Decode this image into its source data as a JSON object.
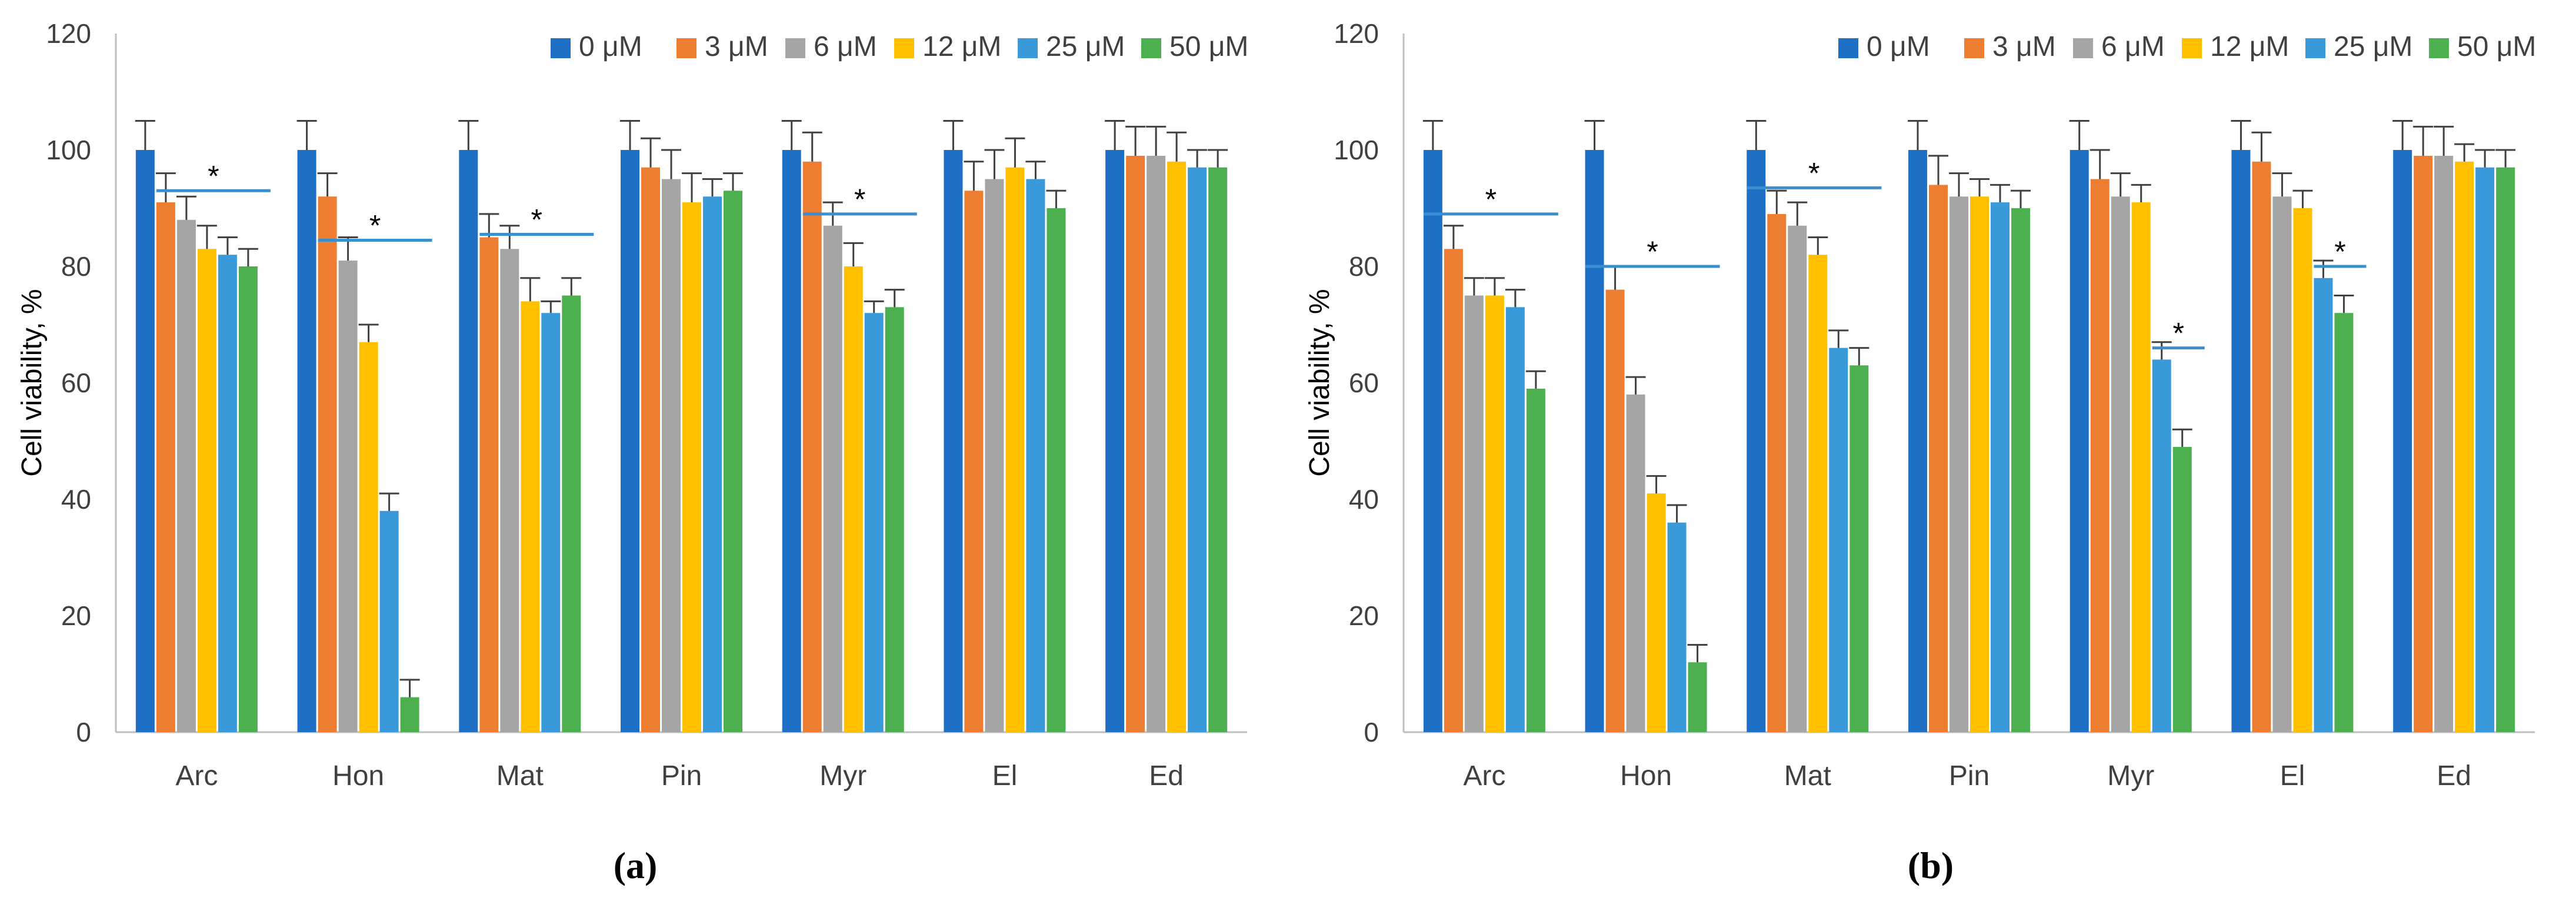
{
  "colors": {
    "series": [
      "#1f6fc5",
      "#ed7d31",
      "#a5a5a5",
      "#ffc000",
      "#3a9ad9",
      "#4caf50"
    ],
    "sig_line": "#3a8fd0",
    "axis": "#bfbfbf",
    "error_bar": "#404040"
  },
  "chart_data": [
    {
      "type": "bar",
      "panel_label": "(a)",
      "ylabel": "Cell viability, %",
      "xlabel": "",
      "ylim": [
        0,
        120
      ],
      "yticks": [
        0,
        20,
        40,
        60,
        80,
        100,
        120
      ],
      "grid": false,
      "legend_position": "top-right",
      "categories": [
        "Arc",
        "Hon",
        "Mat",
        "Pin",
        "Myr",
        "El",
        "Ed"
      ],
      "series": [
        {
          "name": "0 μM",
          "values": [
            100,
            100,
            100,
            100,
            100,
            100,
            100
          ],
          "errors": [
            5,
            5,
            5,
            5,
            5,
            5,
            5
          ]
        },
        {
          "name": "3 μM",
          "values": [
            91,
            92,
            85,
            97,
            98,
            93,
            99
          ],
          "errors": [
            5,
            4,
            4,
            5,
            5,
            5,
            5
          ]
        },
        {
          "name": "6 μM",
          "values": [
            88,
            81,
            83,
            95,
            87,
            95,
            99
          ],
          "errors": [
            4,
            4,
            4,
            5,
            4,
            5,
            5
          ]
        },
        {
          "name": "12 μM",
          "values": [
            83,
            67,
            74,
            91,
            80,
            97,
            98
          ],
          "errors": [
            4,
            3,
            4,
            5,
            4,
            5,
            5
          ]
        },
        {
          "name": "25 μM",
          "values": [
            82,
            38,
            72,
            92,
            72,
            95,
            97
          ],
          "errors": [
            3,
            3,
            2,
            3,
            2,
            3,
            3
          ]
        },
        {
          "name": "50 μM",
          "values": [
            80,
            6,
            75,
            93,
            73,
            90,
            97
          ],
          "errors": [
            3,
            3,
            3,
            3,
            3,
            3,
            3
          ]
        }
      ],
      "significance": [
        {
          "category": "Arc",
          "from_series": 1,
          "to_series": 5,
          "y": 93,
          "label": "*"
        },
        {
          "category": "Hon",
          "from_series": 1,
          "to_series": 5,
          "y": 84.5,
          "label": "*"
        },
        {
          "category": "Mat",
          "from_series": 1,
          "to_series": 5,
          "y": 85.5,
          "label": "*"
        },
        {
          "category": "Myr",
          "from_series": 1,
          "to_series": 5,
          "y": 89,
          "label": "*"
        }
      ]
    },
    {
      "type": "bar",
      "panel_label": "(b)",
      "ylabel": "Cell viability, %",
      "xlabel": "",
      "ylim": [
        0,
        120
      ],
      "yticks": [
        0,
        20,
        40,
        60,
        80,
        100,
        120
      ],
      "grid": false,
      "legend_position": "top-right",
      "categories": [
        "Arc",
        "Hon",
        "Mat",
        "Pin",
        "Myr",
        "El",
        "Ed"
      ],
      "series": [
        {
          "name": "0 μM",
          "values": [
            100,
            100,
            100,
            100,
            100,
            100,
            100
          ],
          "errors": [
            5,
            5,
            5,
            5,
            5,
            5,
            5
          ]
        },
        {
          "name": "3 μM",
          "values": [
            83,
            76,
            89,
            94,
            95,
            98,
            99
          ],
          "errors": [
            4,
            4,
            4,
            5,
            5,
            5,
            5
          ]
        },
        {
          "name": "6 μM",
          "values": [
            75,
            58,
            87,
            92,
            92,
            92,
            99
          ],
          "errors": [
            3,
            3,
            4,
            4,
            4,
            4,
            5
          ]
        },
        {
          "name": "12 μM",
          "values": [
            75,
            41,
            82,
            92,
            91,
            90,
            98
          ],
          "errors": [
            3,
            3,
            3,
            3,
            3,
            3,
            3
          ]
        },
        {
          "name": "25 μM",
          "values": [
            73,
            36,
            66,
            91,
            64,
            78,
            97
          ],
          "errors": [
            3,
            3,
            3,
            3,
            3,
            3,
            3
          ]
        },
        {
          "name": "50 μM",
          "values": [
            59,
            12,
            63,
            90,
            49,
            72,
            97
          ],
          "errors": [
            3,
            3,
            3,
            3,
            3,
            3,
            3
          ]
        }
      ],
      "significance": [
        {
          "category": "Arc",
          "from_series": 0,
          "to_series": 5,
          "y": 89,
          "label": "*"
        },
        {
          "category": "Hon",
          "from_series": 0,
          "to_series": 5,
          "y": 80,
          "label": "*"
        },
        {
          "category": "Mat",
          "from_series": 0,
          "to_series": 5,
          "y": 93.5,
          "label": "*"
        },
        {
          "category": "Myr",
          "from_series": 4,
          "to_series": 5,
          "y": 66,
          "label": "*"
        },
        {
          "category": "El",
          "from_series": 4,
          "to_series": 5,
          "y": 80,
          "label": "*"
        }
      ]
    }
  ]
}
